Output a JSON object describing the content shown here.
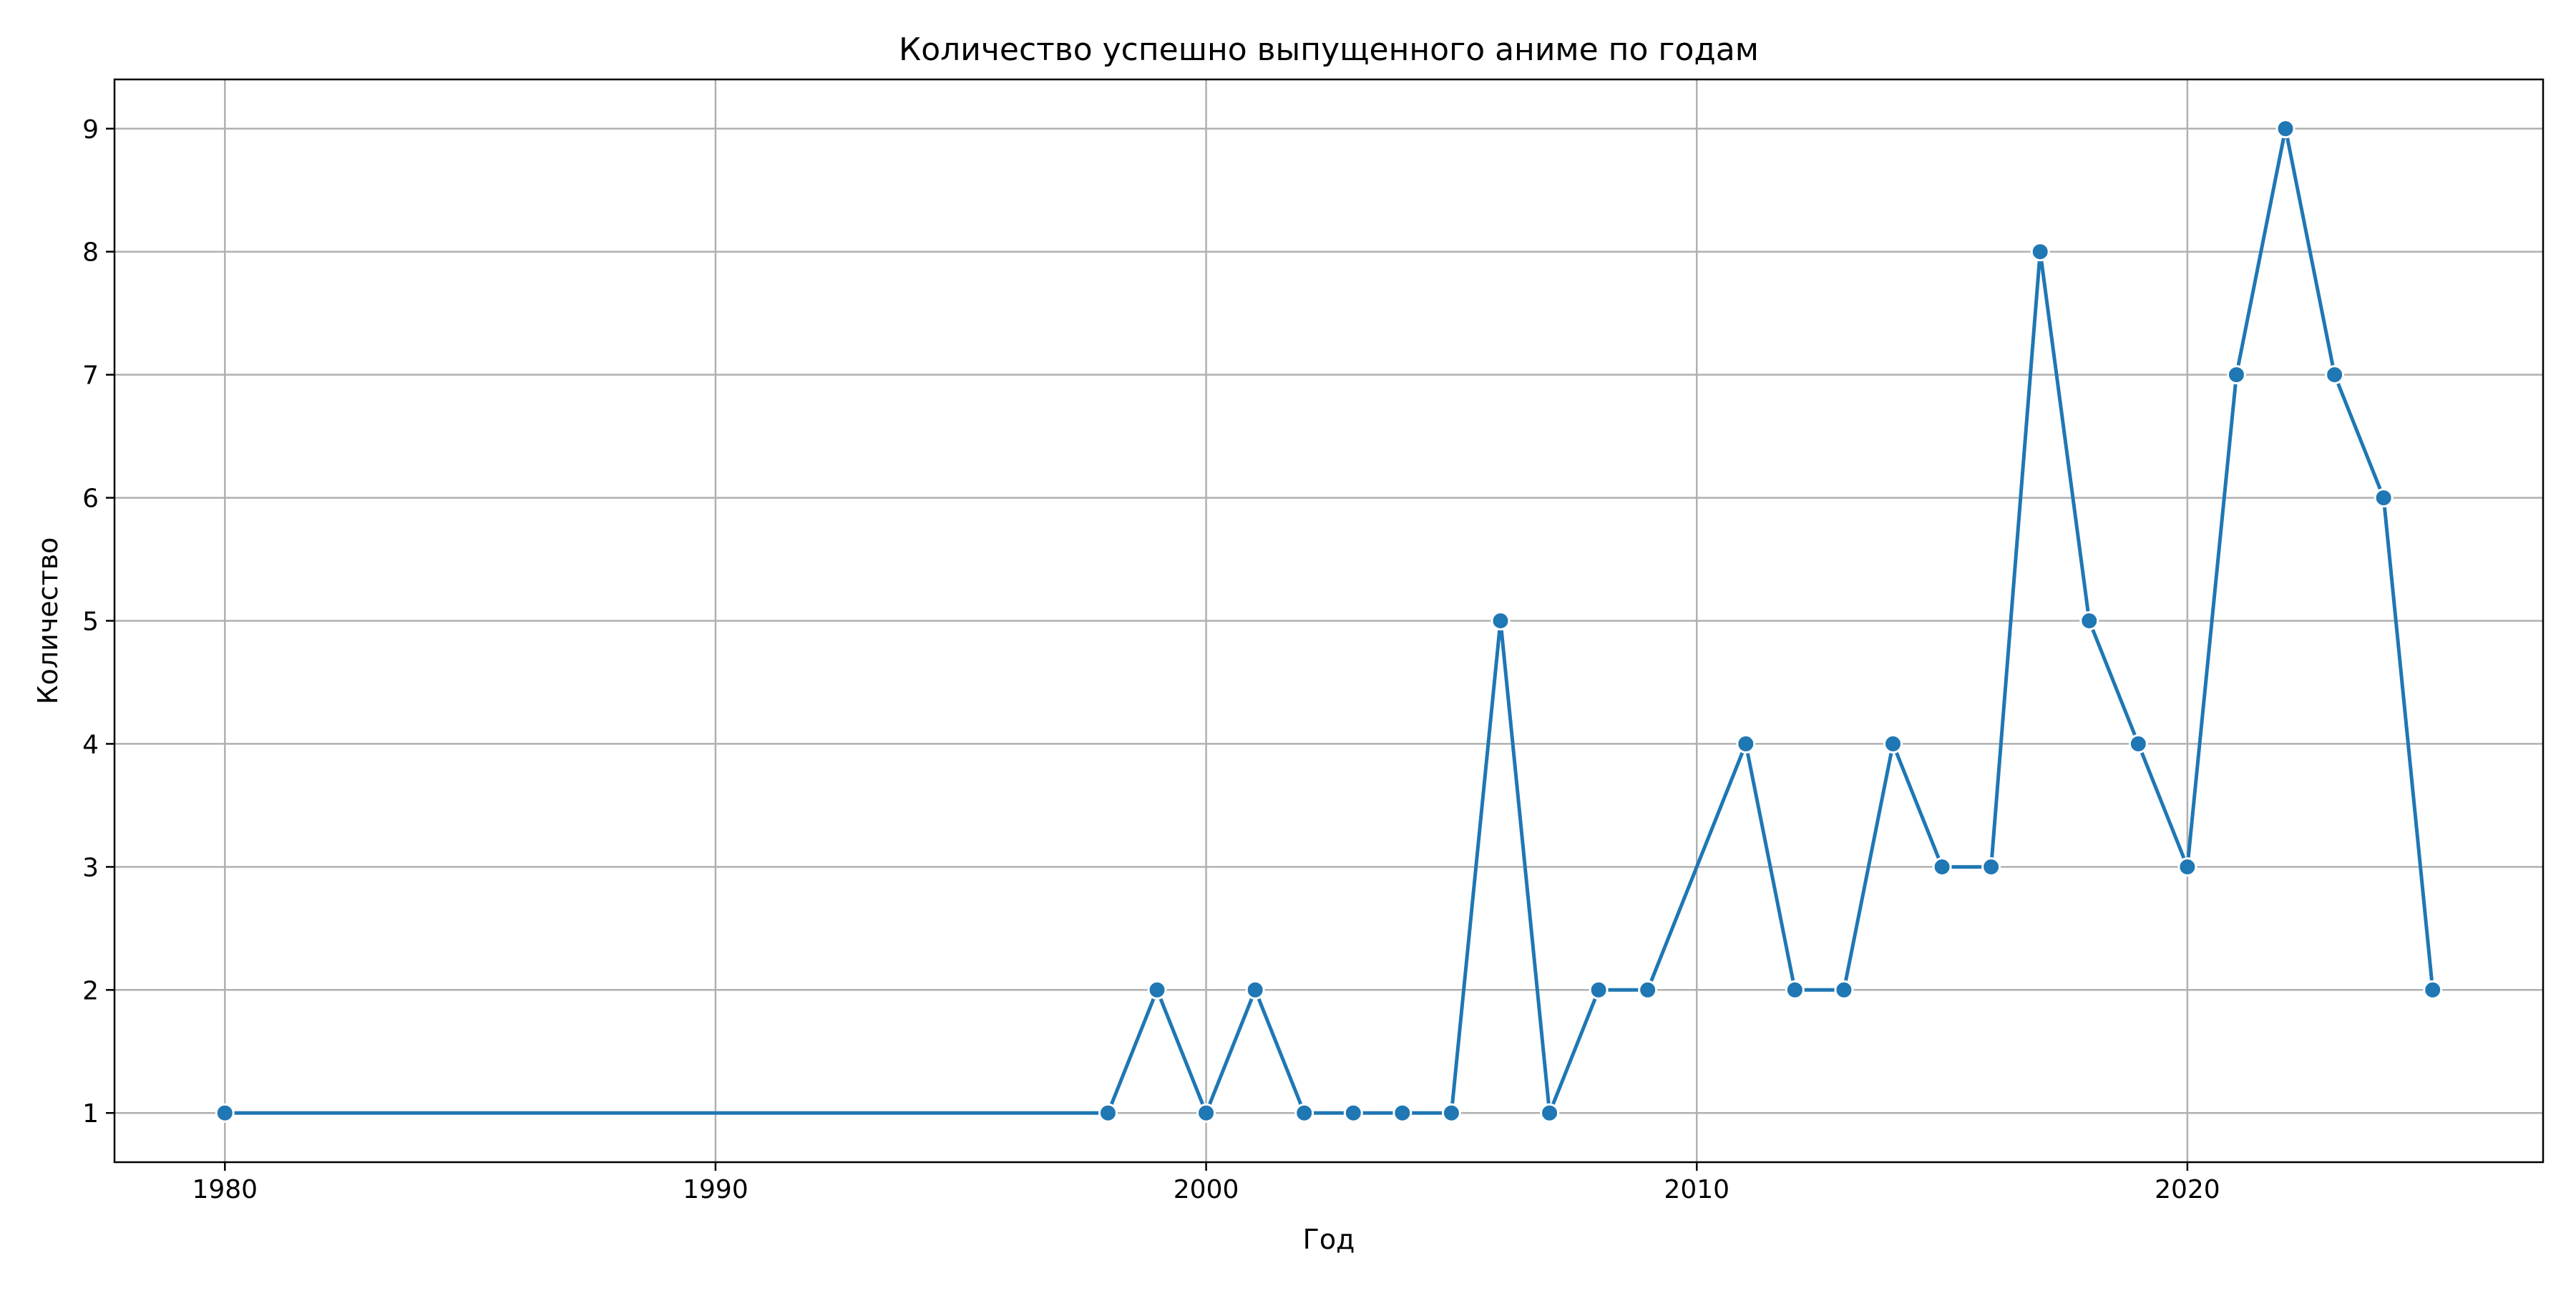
{
  "chart_data": {
    "type": "line",
    "title": "Количество успешно выпущенного аниме по годам",
    "xlabel": "Год",
    "ylabel": "Количество",
    "xlim": [
      1977.75,
      2027.25
    ],
    "ylim": [
      0.6,
      9.4
    ],
    "xticks": [
      1980,
      1990,
      2000,
      2010,
      2020
    ],
    "yticks": [
      1,
      2,
      3,
      4,
      5,
      6,
      7,
      8,
      9
    ],
    "grid": true,
    "colors": {
      "line": "#1f77b4",
      "grid": "#b0b0b0",
      "axis": "#000000",
      "marker_edge": "#ffffff"
    },
    "series": [
      {
        "x": [
          1980,
          1998,
          1999,
          2000,
          2001,
          2002,
          2003,
          2004,
          2005,
          2006,
          2007,
          2008,
          2009,
          2011,
          2012,
          2013,
          2014,
          2015,
          2016,
          2017,
          2018,
          2019,
          2020,
          2021,
          2022,
          2023,
          2024,
          2025
        ],
        "y": [
          1,
          1,
          2,
          1,
          2,
          1,
          1,
          1,
          1,
          5,
          1,
          2,
          2,
          4,
          2,
          2,
          4,
          3,
          3,
          8,
          5,
          4,
          3,
          7,
          9,
          7,
          6,
          2
        ]
      }
    ]
  }
}
